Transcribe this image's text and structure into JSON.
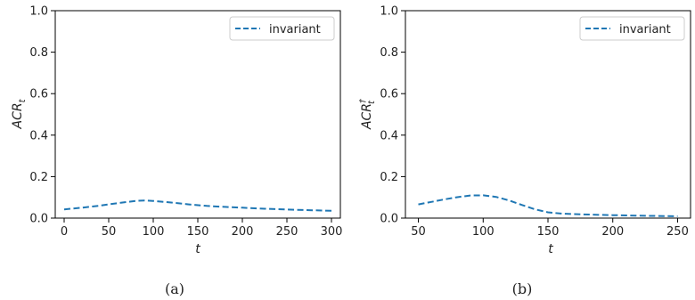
{
  "chart_data": [
    {
      "type": "line",
      "panel_caption": "(a)",
      "xlabel": "t",
      "ylabel": {
        "base": "ACR",
        "subscript": "t",
        "superscript": ""
      },
      "xlim": [
        -10,
        310
      ],
      "ylim": [
        0,
        1.0
      ],
      "xticks": [
        0,
        50,
        100,
        150,
        200,
        250,
        300
      ],
      "yticks": [
        0.0,
        0.2,
        0.4,
        0.6,
        0.8,
        1.0
      ],
      "ytick_labels": [
        "0.0",
        "0.2",
        "0.4",
        "0.6",
        "0.8",
        "1.0"
      ],
      "legend_position": "top-right",
      "grid": false,
      "series": [
        {
          "name": "invariant",
          "style": "dashed",
          "color": "#1f77b4",
          "x": [
            0,
            20,
            40,
            60,
            80,
            90,
            100,
            120,
            140,
            160,
            180,
            200,
            225,
            250,
            275,
            300
          ],
          "y": [
            0.042,
            0.05,
            0.06,
            0.072,
            0.083,
            0.085,
            0.083,
            0.075,
            0.066,
            0.059,
            0.054,
            0.05,
            0.045,
            0.041,
            0.038,
            0.035
          ]
        }
      ]
    },
    {
      "type": "line",
      "panel_caption": "(b)",
      "xlabel": "t",
      "ylabel": {
        "base": "ACR",
        "subscript": "t",
        "superscript": "†"
      },
      "xlim": [
        40,
        260
      ],
      "ylim": [
        0,
        1.0
      ],
      "xticks": [
        50,
        100,
        150,
        200,
        250
      ],
      "yticks": [
        0.0,
        0.2,
        0.4,
        0.6,
        0.8,
        1.0
      ],
      "ytick_labels": [
        "0.0",
        "0.2",
        "0.4",
        "0.6",
        "0.8",
        "1.0"
      ],
      "legend_position": "top-right",
      "grid": false,
      "series": [
        {
          "name": "invariant",
          "style": "dashed",
          "color": "#1f77b4",
          "x": [
            50,
            60,
            70,
            80,
            90,
            100,
            110,
            120,
            130,
            140,
            150,
            160,
            175,
            200,
            225,
            250
          ],
          "y": [
            0.066,
            0.078,
            0.09,
            0.101,
            0.109,
            0.11,
            0.102,
            0.085,
            0.063,
            0.042,
            0.028,
            0.022,
            0.018,
            0.014,
            0.011,
            0.009
          ]
        }
      ]
    }
  ]
}
